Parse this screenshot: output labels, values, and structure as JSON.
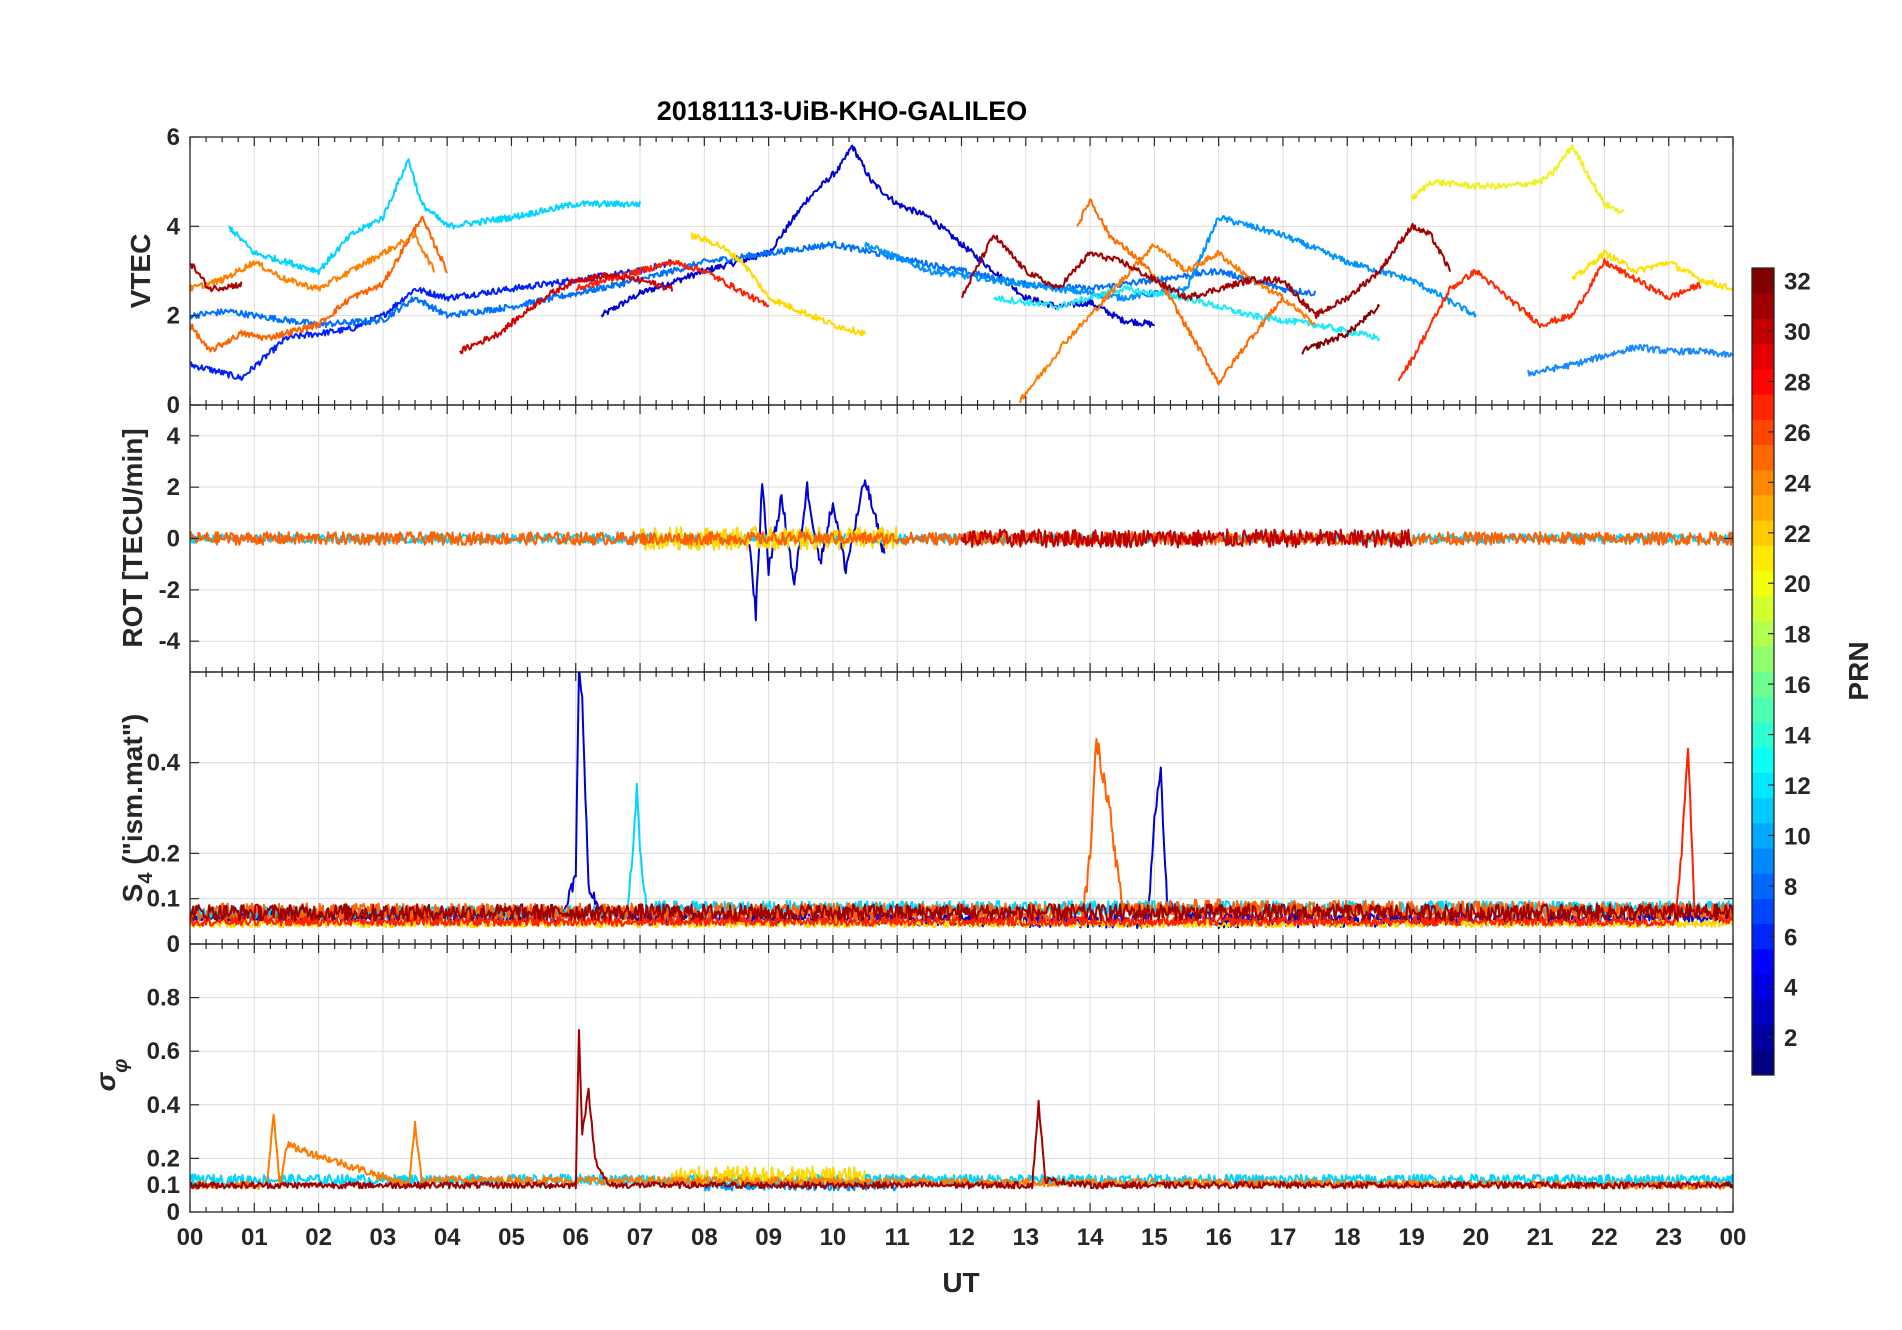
{
  "chart_data": {
    "type": "line",
    "title": "20181113-UiB-KHO-GALILEO",
    "xlabel": "UT",
    "x_ticks": [
      "00",
      "01",
      "02",
      "03",
      "04",
      "05",
      "06",
      "07",
      "08",
      "09",
      "10",
      "11",
      "12",
      "13",
      "14",
      "15",
      "16",
      "17",
      "18",
      "19",
      "20",
      "21",
      "22",
      "23",
      "00"
    ],
    "x_range_hours": [
      0,
      24
    ],
    "grid": true,
    "colorbar": {
      "label": "PRN",
      "ticks": [
        "2",
        "4",
        "6",
        "8",
        "10",
        "12",
        "14",
        "16",
        "18",
        "20",
        "22",
        "24",
        "26",
        "28",
        "30",
        "32"
      ],
      "range": [
        1,
        32
      ],
      "colormap": "jet",
      "placement": "right"
    },
    "panels": [
      {
        "key": "vtec",
        "ylabel": "VTEC",
        "ylim": [
          0,
          6
        ],
        "yticks": [
          "0",
          "2",
          "4",
          "6"
        ],
        "yticks_values": [
          0,
          2,
          4,
          6
        ],
        "series": [
          {
            "prn": 3,
            "color": "#0000d0",
            "x": [
              6.4,
              7.0,
              8.0,
              9.0,
              9.6,
              10.1,
              10.3,
              10.6,
              11.0,
              11.5,
              12.0,
              12.5,
              13.0,
              13.5,
              14.0,
              14.5,
              15.0
            ],
            "y": [
              2.0,
              2.5,
              3.0,
              3.4,
              4.6,
              5.3,
              5.8,
              5.0,
              4.5,
              4.2,
              3.6,
              3.0,
              2.4,
              2.2,
              2.3,
              1.9,
              1.8
            ]
          },
          {
            "prn": 5,
            "color": "#0020ff",
            "x": [
              0.0,
              0.3,
              0.8,
              1.5,
              2.5,
              3.0,
              3.5,
              4.0,
              5.0,
              6.0,
              7.0,
              7.5
            ],
            "y": [
              0.9,
              0.8,
              0.6,
              1.5,
              1.7,
              2.0,
              2.6,
              2.4,
              2.6,
              2.8,
              3.0,
              3.2
            ]
          },
          {
            "prn": 8,
            "color": "#0070ff",
            "x": [
              0.0,
              0.6,
              1.0,
              2.0,
              3.0,
              3.5,
              4.0,
              5.0,
              6.0,
              7.0,
              8.0,
              9.0,
              10.0,
              11.0,
              12.0,
              13.0,
              14.0,
              15.0,
              16.0,
              17.0,
              17.5
            ],
            "y": [
              2.0,
              2.1,
              2.0,
              1.8,
              1.9,
              2.4,
              2.0,
              2.2,
              2.5,
              2.8,
              3.2,
              3.4,
              3.6,
              3.3,
              3.0,
              2.7,
              2.6,
              2.8,
              3.0,
              2.6,
              2.5
            ]
          },
          {
            "prn": 9,
            "color": "#0094ff",
            "x": [
              10.5,
              11.5,
              12.5,
              13.5,
              14.5,
              15.5,
              16.0,
              17.0,
              18.0,
              19.0,
              20.0
            ],
            "y": [
              3.6,
              3.0,
              2.8,
              2.6,
              2.4,
              2.6,
              4.2,
              3.8,
              3.2,
              2.8,
              2.0
            ]
          },
          {
            "prn": 9,
            "color": "#1a88ff",
            "x": [
              20.8,
              21.5,
              22.0,
              22.5,
              23.0,
              23.5,
              24.0
            ],
            "y": [
              0.7,
              0.9,
              1.1,
              1.3,
              1.2,
              1.2,
              1.1
            ]
          },
          {
            "prn": 12,
            "color": "#00d4ff",
            "x": [
              0.6,
              1.0,
              2.0,
              2.5,
              3.0,
              3.4,
              3.6,
              4.0,
              5.0,
              6.0,
              7.0
            ],
            "y": [
              4.0,
              3.4,
              3.0,
              3.8,
              4.2,
              5.5,
              4.5,
              4.0,
              4.2,
              4.5,
              4.5
            ]
          },
          {
            "prn": 13,
            "color": "#20e8f8",
            "x": [
              12.5,
              13.5,
              14.5,
              15.5,
              16.5,
              17.5,
              18.5
            ],
            "y": [
              2.4,
              2.2,
              2.6,
              2.4,
              2.0,
              1.8,
              1.5
            ]
          },
          {
            "prn": 20,
            "color": "#f0f020",
            "x": [
              19.0,
              19.3,
              20.0,
              20.5,
              21.0,
              21.2,
              21.5,
              22.0,
              22.3
            ],
            "y": [
              4.6,
              5.0,
              4.9,
              4.9,
              5.0,
              5.2,
              5.8,
              4.5,
              4.3
            ]
          },
          {
            "prn": 21,
            "color": "#ffd800",
            "x": [
              7.8,
              8.2,
              8.6,
              9.0,
              9.5,
              10.0,
              10.5
            ],
            "y": [
              3.8,
              3.6,
              3.2,
              2.4,
              2.1,
              1.8,
              1.6
            ]
          },
          {
            "prn": 21,
            "color": "#ffe000",
            "x": [
              21.5,
              22.0,
              22.5,
              23.0,
              23.5,
              24.0
            ],
            "y": [
              2.8,
              3.4,
              3.0,
              3.2,
              2.8,
              2.6
            ]
          },
          {
            "prn": 24,
            "color": "#ff8000",
            "x": [
              0.0,
              0.5,
              1.0,
              1.5,
              2.0,
              2.5,
              3.0,
              3.5,
              3.8
            ],
            "y": [
              2.6,
              2.8,
              3.2,
              2.8,
              2.6,
              3.0,
              3.4,
              3.8,
              3.0
            ]
          },
          {
            "prn": 24,
            "color": "#ff7a00",
            "x": [
              12.9,
              13.3,
              13.6,
              14.0,
              14.5,
              15.0,
              15.5,
              16.0,
              16.5,
              17.0,
              17.5
            ],
            "y": [
              0.1,
              0.8,
              1.4,
              2.0,
              2.8,
              3.6,
              3.0,
              3.4,
              2.8,
              2.4,
              1.8
            ]
          },
          {
            "prn": 25,
            "color": "#ff6000",
            "x": [
              0.0,
              0.3,
              0.8,
              1.2,
              2.0,
              2.5,
              3.0,
              3.6,
              4.0
            ],
            "y": [
              1.8,
              1.2,
              1.6,
              1.5,
              1.8,
              2.4,
              2.7,
              4.2,
              3.0
            ]
          },
          {
            "prn": 25,
            "color": "#ff6a00",
            "x": [
              13.8,
              14.0,
              14.3,
              14.8,
              15.2,
              15.6,
              16.0,
              16.5,
              17.0
            ],
            "y": [
              4.0,
              4.6,
              3.8,
              3.2,
              2.5,
              1.5,
              0.5,
              1.5,
              2.4
            ]
          },
          {
            "prn": 28,
            "color": "#ff2000",
            "x": [
              6.0,
              6.5,
              7.0,
              7.5,
              8.0,
              8.5,
              9.0
            ],
            "y": [
              2.6,
              2.8,
              3.0,
              3.2,
              3.0,
              2.6,
              2.2
            ]
          },
          {
            "prn": 28,
            "color": "#ff2a00",
            "x": [
              18.8,
              19.0,
              19.3,
              19.6,
              20.0,
              20.5,
              21.0,
              21.5,
              22.0,
              22.5,
              23.0,
              23.5
            ],
            "y": [
              0.6,
              1.0,
              1.8,
              2.6,
              3.0,
              2.4,
              1.8,
              2.0,
              3.2,
              2.8,
              2.4,
              2.7
            ]
          },
          {
            "prn": 30,
            "color": "#d00000",
            "x": [
              4.2,
              4.8,
              5.5,
              6.0,
              6.5,
              7.0,
              7.5
            ],
            "y": [
              1.2,
              1.6,
              2.4,
              2.8,
              2.9,
              2.8,
              2.6
            ]
          },
          {
            "prn": 31,
            "color": "#aa0000",
            "x": [
              0.0,
              0.3,
              0.8
            ],
            "y": [
              3.2,
              2.6,
              2.7
            ]
          },
          {
            "prn": 31,
            "color": "#a00000",
            "x": [
              12.0,
              12.5,
              13.0,
              13.5,
              14.0,
              14.5,
              15.0,
              15.5,
              16.0,
              16.5,
              17.0,
              17.5,
              18.0,
              18.5,
              19.0,
              19.3,
              19.6
            ],
            "y": [
              2.4,
              3.8,
              3.0,
              2.6,
              3.4,
              3.2,
              2.8,
              2.4,
              2.6,
              2.8,
              2.8,
              2.0,
              2.4,
              3.0,
              4.0,
              3.8,
              3.0
            ]
          },
          {
            "prn": 32,
            "color": "#800000",
            "x": [
              17.3,
              18.0,
              18.5
            ],
            "y": [
              1.2,
              1.6,
              2.2
            ]
          }
        ]
      },
      {
        "key": "rot",
        "ylabel": "ROT [TECU/min]",
        "ylim": [
          -5.2,
          5.2
        ],
        "yticks": [
          "-4",
          "-2",
          "0",
          "2",
          "4"
        ],
        "yticks_values": [
          -4,
          -2,
          0,
          2,
          4
        ],
        "series": [
          {
            "prn": 3,
            "color": "#0000d0",
            "x": [
              8.7,
              8.8,
              8.9,
              9.0,
              9.2,
              9.4,
              9.6,
              9.8,
              10.0,
              10.2,
              10.5,
              10.8
            ],
            "y": [
              0,
              -3.0,
              2.3,
              -1.2,
              1.6,
              -1.8,
              2.0,
              -1.0,
              1.4,
              -1.2,
              2.3,
              -0.6
            ],
            "noise": 0.25
          },
          {
            "prn": 12,
            "color": "#00d4ff",
            "x": [
              0,
              24
            ],
            "y": [
              0,
              0
            ],
            "noise": 0.18
          },
          {
            "prn": 21,
            "color": "#ffd800",
            "x": [
              7,
              11
            ],
            "y": [
              0,
              0
            ],
            "noise": 0.45
          },
          {
            "prn": 25,
            "color": "#ff6000",
            "x": [
              0,
              24
            ],
            "y": [
              0,
              0
            ],
            "noise": 0.25
          },
          {
            "prn": 30,
            "color": "#c00000",
            "x": [
              12,
              19
            ],
            "y": [
              0,
              0
            ],
            "noise": 0.35
          }
        ]
      },
      {
        "key": "s4",
        "ylabel": "S4 (\"ism.mat\")",
        "ylabel_main": "S",
        "ylabel_sub": "4",
        "ylabel_rest": " (\"ism.mat\")",
        "ylim": [
          0,
          0.6
        ],
        "yticks": [
          "0",
          "0.1",
          "0.2",
          "0.4"
        ],
        "yticks_values": [
          0,
          0.1,
          0.2,
          0.4
        ],
        "series": [
          {
            "prn": 3,
            "color": "#0000d0",
            "x": [
              0,
              5.8,
              6.0,
              6.05,
              6.1,
              6.2,
              6.4,
              7.0,
              14.9,
              15.0,
              15.1,
              15.2,
              16,
              24
            ],
            "y": [
              0.06,
              0.06,
              0.15,
              0.6,
              0.55,
              0.12,
              0.07,
              0.06,
              0.05,
              0.28,
              0.38,
              0.08,
              0.05,
              0.06
            ],
            "noise": 0.015
          },
          {
            "prn": 12,
            "color": "#00d4ff",
            "x": [
              0,
              6.8,
              6.9,
              6.95,
              7.0,
              7.1,
              24
            ],
            "y": [
              0.07,
              0.07,
              0.22,
              0.34,
              0.2,
              0.08,
              0.08
            ],
            "noise": 0.015
          },
          {
            "prn": 21,
            "color": "#ffd800",
            "x": [
              0,
              24
            ],
            "y": [
              0.045,
              0.045
            ],
            "noise": 0.008
          },
          {
            "prn": 25,
            "color": "#ff6000",
            "x": [
              0,
              13.9,
              14.0,
              14.1,
              14.3,
              14.5,
              24
            ],
            "y": [
              0.07,
              0.07,
              0.2,
              0.45,
              0.3,
              0.08,
              0.07
            ],
            "noise": 0.02
          },
          {
            "prn": 28,
            "color": "#ff2000",
            "x": [
              0,
              23.1,
              23.2,
              23.3,
              23.4,
              24
            ],
            "y": [
              0.05,
              0.05,
              0.2,
              0.44,
              0.08,
              0.05
            ],
            "noise": 0.01
          },
          {
            "prn": 31,
            "color": "#a00000",
            "x": [
              0,
              24
            ],
            "y": [
              0.07,
              0.07
            ],
            "noise": 0.018
          }
        ]
      },
      {
        "key": "sigma",
        "ylabel": "σφ",
        "ylabel_main": "σ",
        "ylabel_sub": "φ",
        "ylim": [
          0,
          1.0
        ],
        "yticks": [
          "0",
          "0.1",
          "0.2",
          "0.4",
          "0.6",
          "0.8"
        ],
        "yticks_values": [
          0,
          0.1,
          0.2,
          0.4,
          0.6,
          0.8
        ],
        "series": [
          {
            "prn": 9,
            "color": "#0094ff",
            "x": [
              8,
              11
            ],
            "y": [
              0.1,
              0.1
            ],
            "noise": 0.02
          },
          {
            "prn": 12,
            "color": "#00d4ff",
            "x": [
              0,
              24
            ],
            "y": [
              0.12,
              0.12
            ],
            "noise": 0.02
          },
          {
            "prn": 21,
            "color": "#ffd800",
            "x": [
              7.5,
              10.5
            ],
            "y": [
              0.13,
              0.13
            ],
            "noise": 0.04
          },
          {
            "prn": 24,
            "color": "#ff7a00",
            "x": [
              0,
              1.2,
              1.3,
              1.4,
              1.5,
              3.4,
              3.5,
              3.6,
              24
            ],
            "y": [
              0.1,
              0.1,
              0.37,
              0.1,
              0.25,
              0.1,
              0.33,
              0.12,
              0.1
            ],
            "noise": 0.015
          },
          {
            "prn": 31,
            "color": "#a00000",
            "x": [
              0,
              6.0,
              6.05,
              6.1,
              6.2,
              6.3,
              6.5,
              13.1,
              13.2,
              13.3,
              14,
              24
            ],
            "y": [
              0.1,
              0.1,
              0.68,
              0.3,
              0.45,
              0.2,
              0.1,
              0.1,
              0.41,
              0.12,
              0.1,
              0.1
            ],
            "noise": 0.012
          }
        ]
      }
    ]
  }
}
